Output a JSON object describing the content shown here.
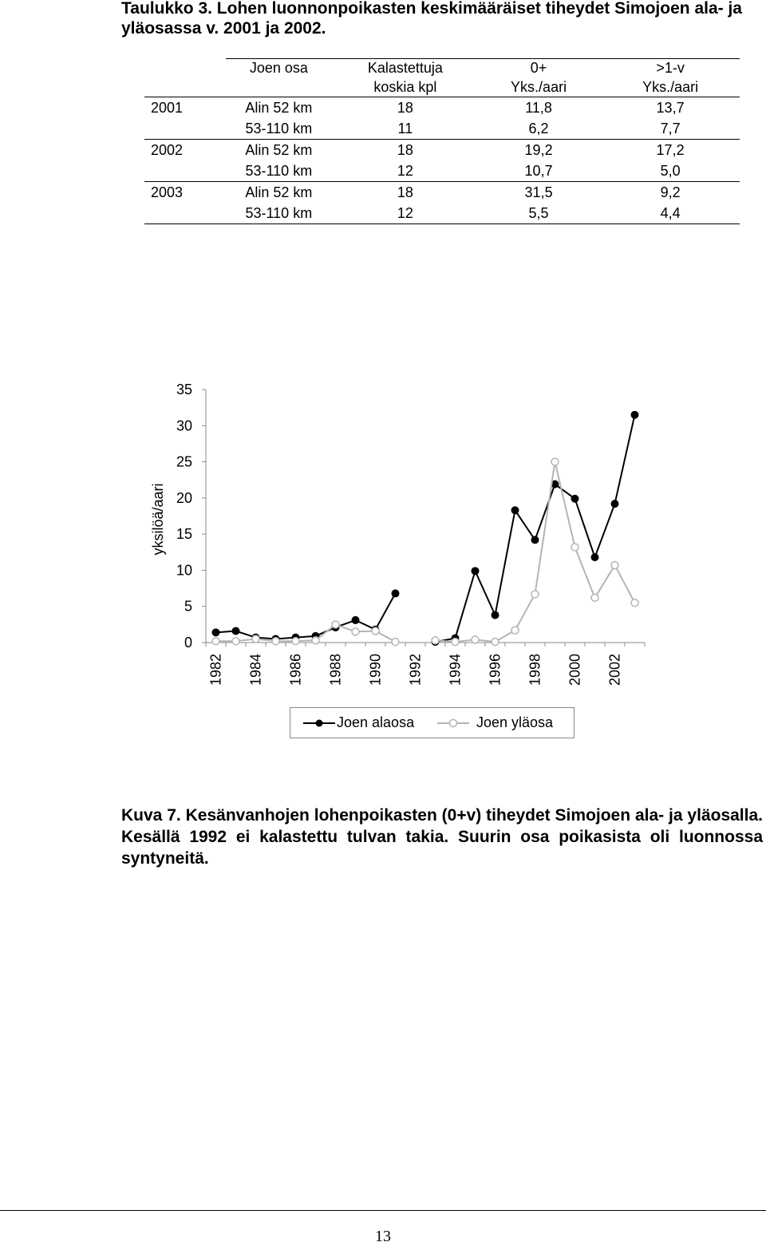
{
  "table_caption": "Taulukko 3. Lohen luonnonpoikasten keskimääräiset tiheydet Simojoen ala- ja yläosassa v. 2001 ja 2002.",
  "table": {
    "headers": [
      [
        "",
        "Joen osa",
        "Kalastettuja",
        "0+",
        ">1-v"
      ],
      [
        "",
        "",
        "koskia kpl",
        "Yks./aari",
        "Yks./aari"
      ]
    ],
    "rows": [
      [
        "2001",
        "Alin 52 km",
        "18",
        "11,8",
        "13,7"
      ],
      [
        "",
        "53-110 km",
        "11",
        "6,2",
        "7,7"
      ],
      [
        "2002",
        "Alin 52 km",
        "18",
        "19,2",
        "17,2"
      ],
      [
        "",
        "53-110 km",
        "12",
        "10,7",
        "5,0"
      ],
      [
        "2003",
        "Alin 52 km",
        "18",
        "31,5",
        "9,2"
      ],
      [
        "",
        "53-110 km",
        "12",
        "5,5",
        "4,4"
      ]
    ]
  },
  "chart_data": {
    "type": "line",
    "ylabel": "yksilöä/aari",
    "xlabel": "",
    "ylim": [
      0,
      35
    ],
    "yticks": [
      "0",
      "5",
      "10",
      "15",
      "20",
      "25",
      "30",
      "35"
    ],
    "x": [
      1982,
      1983,
      1984,
      1985,
      1986,
      1987,
      1988,
      1989,
      1990,
      1991,
      1992,
      1993,
      1994,
      1995,
      1996,
      1997,
      1998,
      1999,
      2000,
      2001,
      2002,
      2003
    ],
    "xtick_labels": [
      "1982",
      "1984",
      "1986",
      "1988",
      "1990",
      "1992",
      "1994",
      "1996",
      "1998",
      "2000",
      "2002"
    ],
    "series": [
      {
        "name": "Joen alaosa",
        "color": "#000000",
        "marker": "filled-circle",
        "values": [
          1.4,
          1.6,
          0.7,
          0.5,
          0.7,
          0.9,
          2.1,
          3.1,
          1.8,
          6.8,
          null,
          0.1,
          0.6,
          9.9,
          3.8,
          18.3,
          14.2,
          21.9,
          19.9,
          11.8,
          19.2,
          31.5
        ]
      },
      {
        "name": "Joen yläosa",
        "color": "#b4b4b4",
        "marker": "open-circle",
        "values": [
          0.2,
          0.2,
          0.5,
          0.2,
          0.2,
          0.3,
          2.5,
          1.5,
          1.6,
          0.1,
          null,
          0.3,
          0.1,
          0.4,
          0.1,
          1.7,
          6.7,
          25.0,
          13.2,
          6.2,
          10.7,
          5.5
        ]
      }
    ],
    "legend_position": "bottom",
    "grid": false
  },
  "figure_caption": "Kuva 7. Kesänvanhojen lohenpoikasten (0+v)  tiheydet Simojoen ala- ja yläosalla. Kesällä 1992 ei kalastettu tulvan takia. Suurin osa poikasista oli luonnossa syntyneitä.",
  "page_number": "13"
}
